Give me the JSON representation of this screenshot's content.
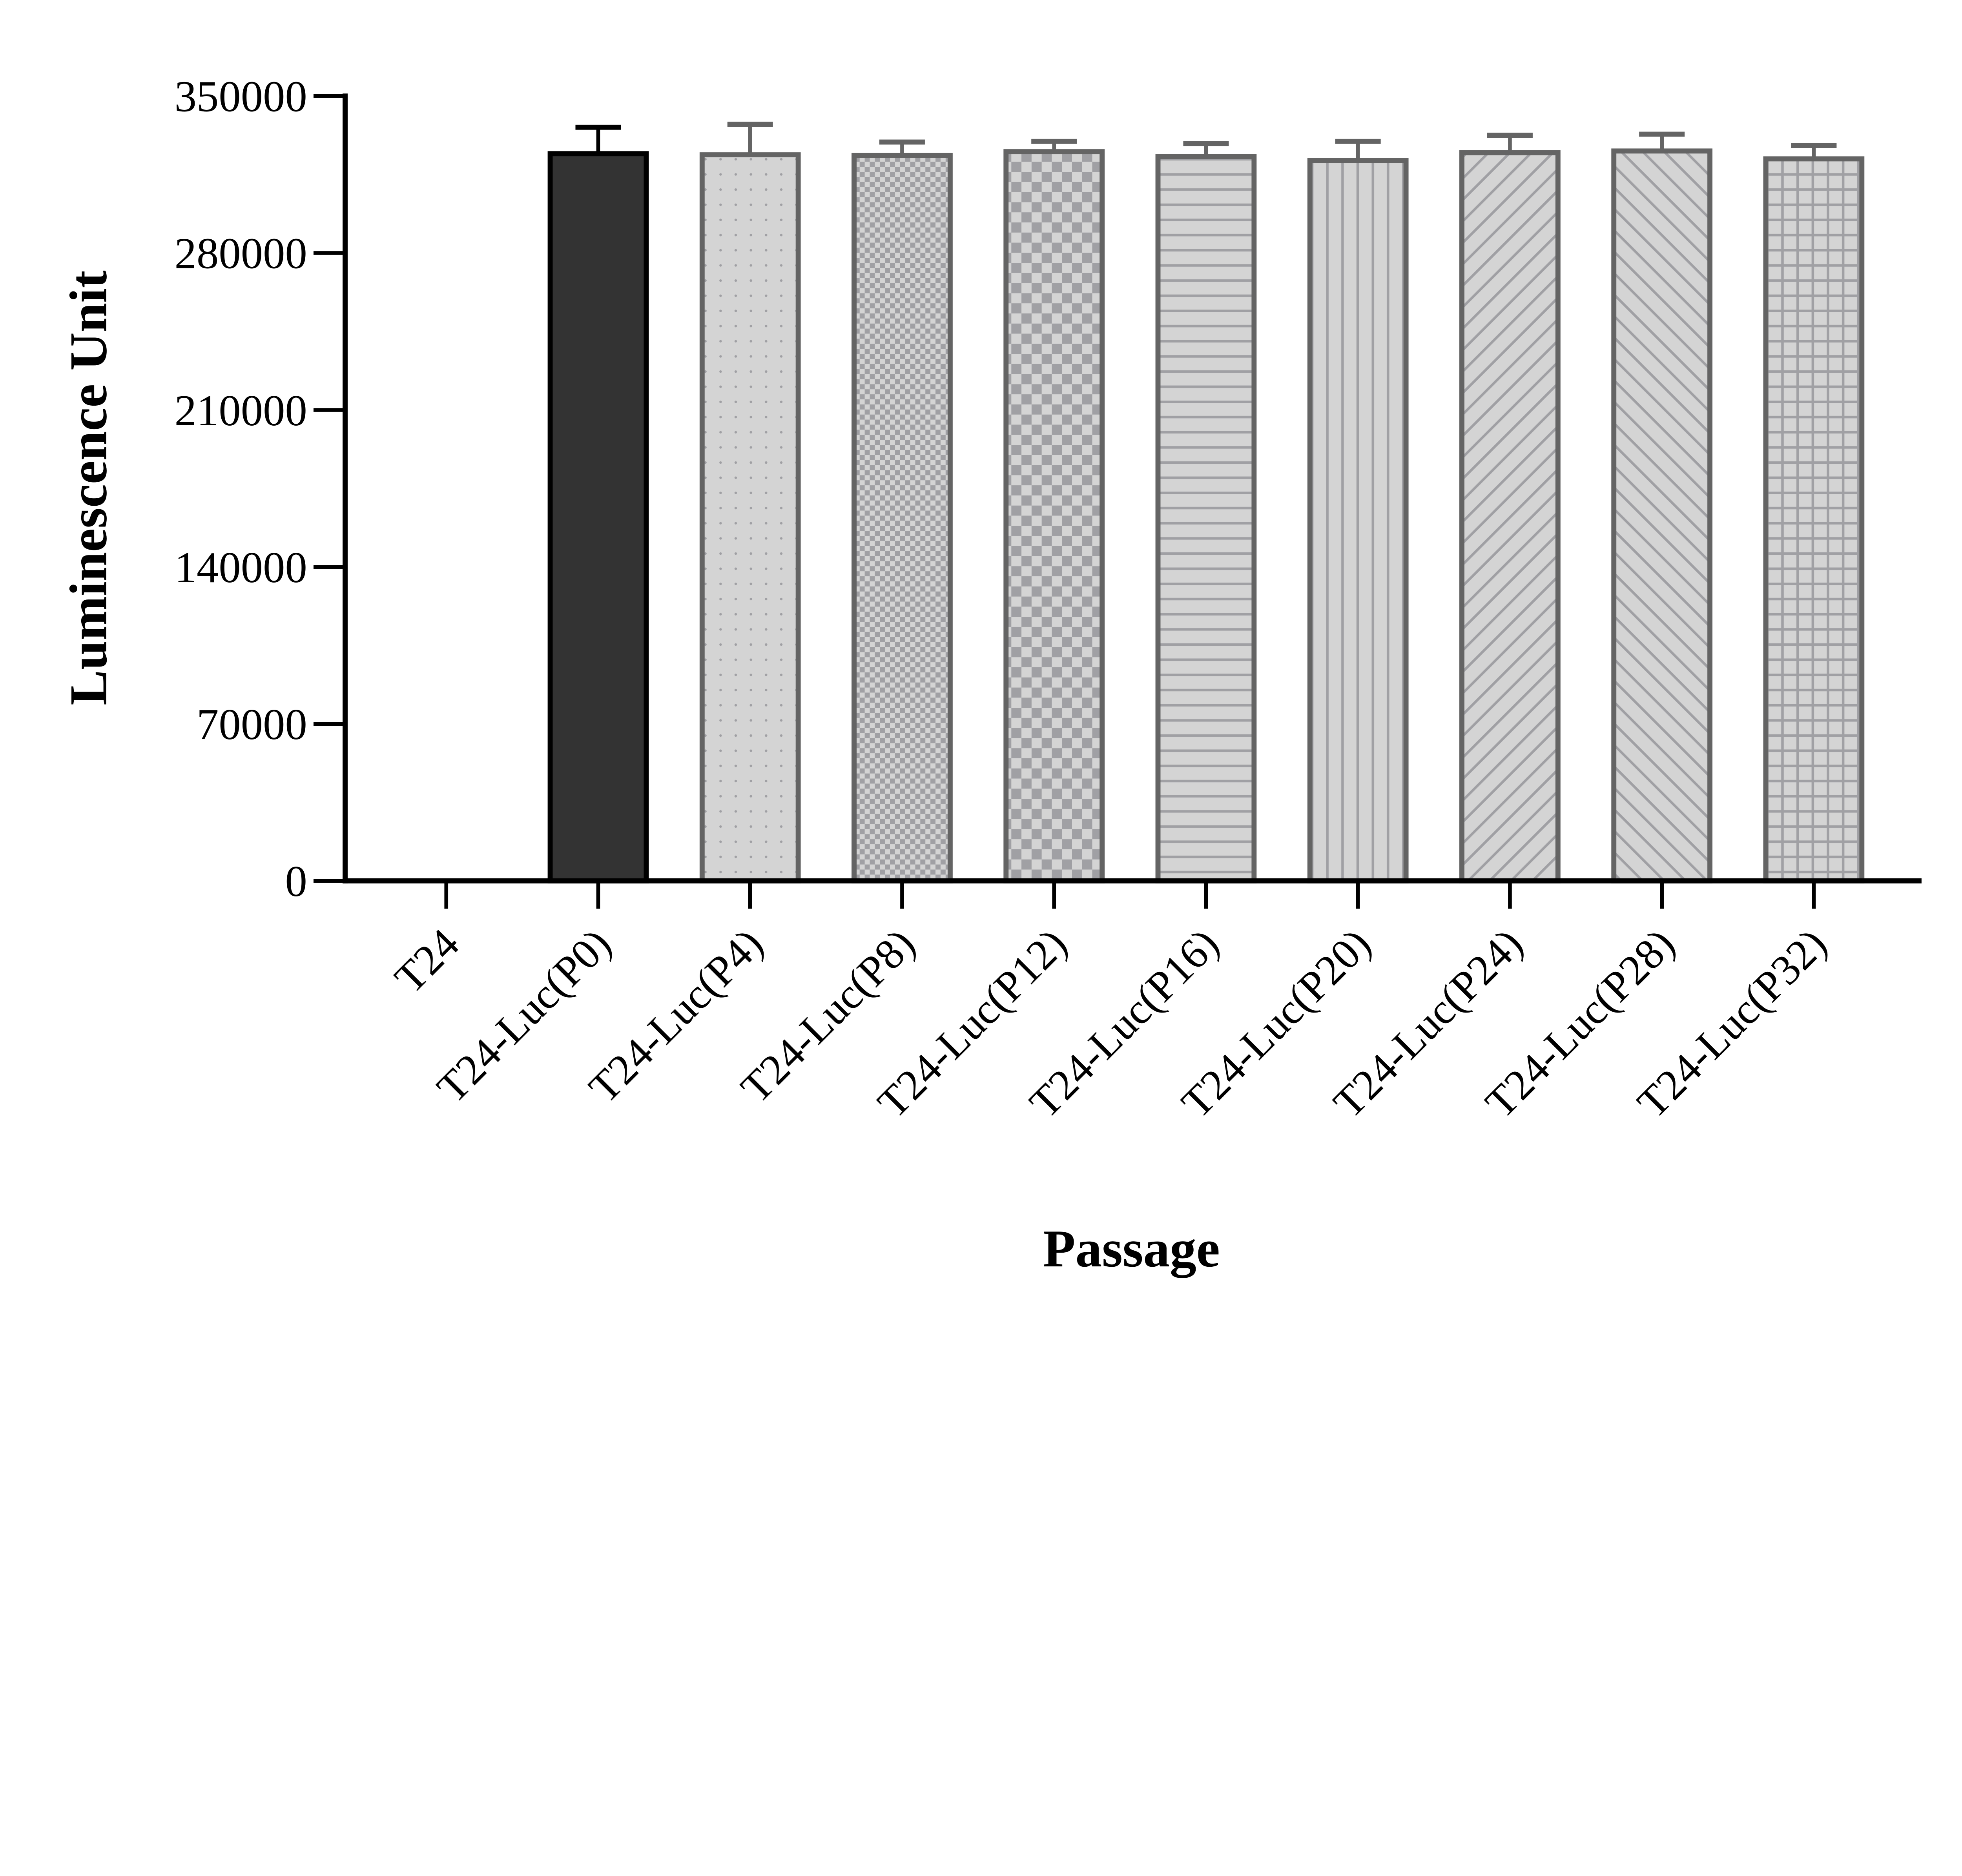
{
  "chart_data": {
    "type": "bar",
    "title": "",
    "xlabel": "Passage",
    "ylabel": "Luminescence Unit",
    "ylim": [
      0,
      350000
    ],
    "yticks": [
      0,
      70000,
      140000,
      210000,
      280000,
      350000
    ],
    "ytick_labels": [
      "0",
      "70000",
      "140000",
      "210000",
      "280000",
      "350000"
    ],
    "grid": false,
    "categories": [
      "T24",
      "T24-Luc(P0)",
      "T24-Luc(P4)",
      "T24-Luc(P8)",
      "T24-Luc(P12)",
      "T24-Luc(P16)",
      "T24-Luc(P20)",
      "T24-Luc(P24)",
      "T24-Luc(P28)",
      "T24-Luc(P32)"
    ],
    "values": [
      0,
      324300,
      323800,
      323500,
      325200,
      323000,
      321300,
      324700,
      325500,
      322000
    ],
    "error_upper": [
      0,
      11800,
      13600,
      6000,
      4600,
      5800,
      8500,
      7800,
      7500,
      6000
    ],
    "patterns": [
      "none",
      "solid-dark",
      "dots",
      "fine-checker",
      "checker",
      "horizontal-lines",
      "vertical-lines",
      "diagonal-up",
      "diagonal-down",
      "grid"
    ],
    "colors": {
      "dark_fill": "#333333",
      "dark_stroke": "#000000",
      "light_fill": "#d4d4d4",
      "pattern": "#a0a0a4",
      "stroke": "#646464"
    }
  }
}
